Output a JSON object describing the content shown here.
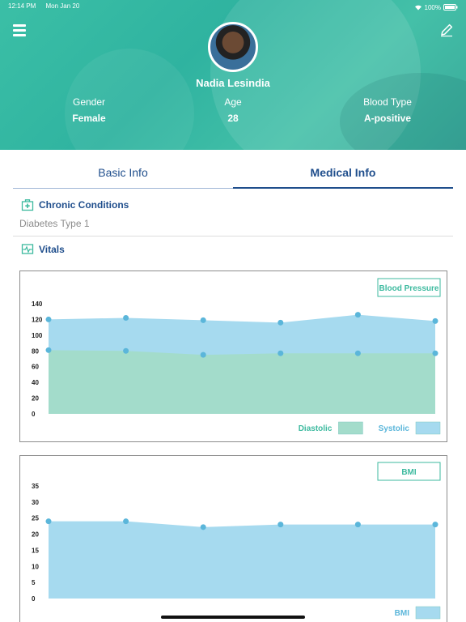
{
  "status_bar": {
    "time": "12:14 PM",
    "date": "Mon Jan 20",
    "battery": "100%"
  },
  "profile": {
    "name": "Nadia Lesindia",
    "stats": [
      {
        "label": "Gender",
        "value": "Female"
      },
      {
        "label": "Age",
        "value": "28"
      },
      {
        "label": "Blood Type",
        "value": "A-positive"
      }
    ]
  },
  "tabs": [
    {
      "label": "Basic Info",
      "active": false
    },
    {
      "label": "Medical Info",
      "active": true
    }
  ],
  "chronic": {
    "title": "Chronic Conditions",
    "items": [
      "Diabetes Type 1"
    ]
  },
  "vitals": {
    "title": "Vitals"
  },
  "colors": {
    "accent": "#1f4e8c",
    "teal": "#3dba9f",
    "diastolic": "#a3dccb",
    "systolic": "#a6daef",
    "point": "#5bb6da"
  },
  "chart_data": [
    {
      "type": "area",
      "title": "Blood Pressure",
      "x": [
        1,
        2,
        3,
        4,
        5,
        6
      ],
      "ylim": [
        0,
        140
      ],
      "yticks": [
        0,
        20,
        40,
        60,
        80,
        100,
        120,
        140
      ],
      "series": [
        {
          "name": "Diastolic",
          "values": [
            81,
            80,
            75,
            77,
            77,
            77
          ]
        },
        {
          "name": "Systolic",
          "values": [
            120,
            122,
            119,
            116,
            126,
            118
          ]
        }
      ],
      "legend": "bottom-right"
    },
    {
      "type": "area",
      "title": "BMI",
      "x": [
        1,
        2,
        3,
        4,
        5,
        6
      ],
      "ylim": [
        0,
        35
      ],
      "yticks": [
        0,
        5,
        10,
        15,
        20,
        25,
        30,
        35
      ],
      "series": [
        {
          "name": "BMI",
          "values": [
            24,
            24,
            22.2,
            23,
            23,
            23
          ]
        }
      ],
      "legend": "bottom-right"
    }
  ]
}
